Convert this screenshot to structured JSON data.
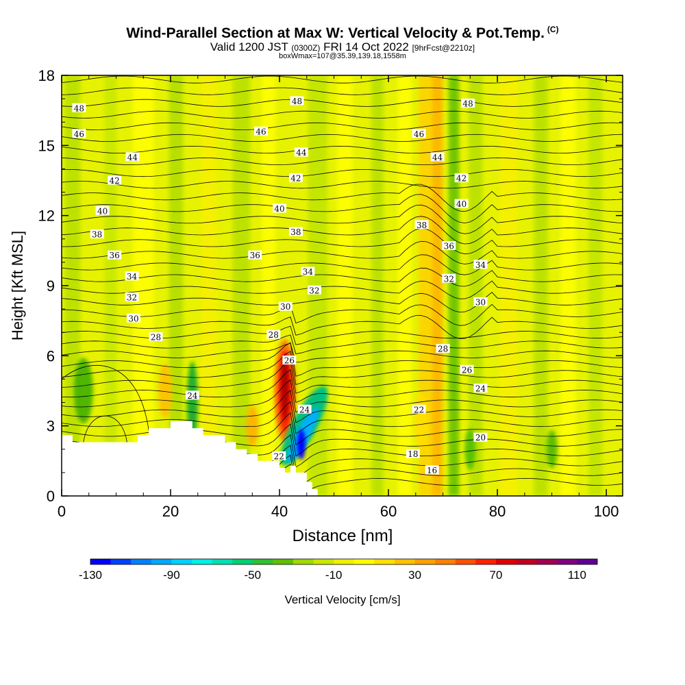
{
  "header": {
    "title": "Wind-Parallel Section at Max W: Vertical Velocity & Pot.Temp.",
    "copyright": "(C)",
    "valid_prefix": "Valid 1200 JST",
    "valid_utc": "(0300Z)",
    "valid_date": "FRI 14 Oct 2022",
    "forecast": "[9hrFcst@2210z]",
    "boxinfo": "boxWmax=107@35.39,139.18,1558m"
  },
  "colors": {
    "background_field": "#e6f200",
    "terrain": "#ffffff"
  },
  "colorbar": {
    "label": "Vertical Velocity [cm/s]",
    "tick_labels": [
      "-130",
      "-90",
      "-50",
      "-10",
      "30",
      "70",
      "110"
    ],
    "colors": [
      "#0000ff",
      "#0040ff",
      "#0080ff",
      "#00a8ff",
      "#00d0ff",
      "#00f0e8",
      "#00e0b0",
      "#00d070",
      "#30c030",
      "#60c000",
      "#a0d800",
      "#c8e800",
      "#f0f000",
      "#ffff00",
      "#ffe000",
      "#ffc000",
      "#ffa000",
      "#ff8000",
      "#ff5000",
      "#ff2000",
      "#e00000",
      "#c00020",
      "#a00050",
      "#800080",
      "#600090"
    ]
  },
  "chart_data": {
    "type": "heatmap",
    "xlabel": "Distance [nm]",
    "ylabel": "Height [Kft MSL]",
    "xlim": [
      0,
      103
    ],
    "ylim": [
      0,
      18
    ],
    "x_ticks": [
      "0",
      "20",
      "40",
      "60",
      "80",
      "100"
    ],
    "y_ticks": [
      "0",
      "3",
      "6",
      "9",
      "12",
      "15",
      "18"
    ],
    "field": "Vertical Velocity [cm/s]",
    "contour_field": "Potential Temperature",
    "terrain_profile": [
      [
        0,
        2.6
      ],
      [
        2,
        2.6
      ],
      [
        2,
        2.3
      ],
      [
        14,
        2.3
      ],
      [
        14,
        2.6
      ],
      [
        16,
        2.6
      ],
      [
        16,
        2.9
      ],
      [
        20,
        2.9
      ],
      [
        20,
        3.2
      ],
      [
        24,
        3.2
      ],
      [
        24,
        2.9
      ],
      [
        26,
        2.9
      ],
      [
        26,
        2.6
      ],
      [
        30,
        2.6
      ],
      [
        30,
        2.3
      ],
      [
        32,
        2.3
      ],
      [
        32,
        2.0
      ],
      [
        34,
        2.0
      ],
      [
        34,
        1.8
      ],
      [
        36,
        1.8
      ],
      [
        36,
        1.5
      ],
      [
        40,
        1.5
      ],
      [
        40,
        1.2
      ],
      [
        41,
        1.2
      ],
      [
        41,
        1.0
      ],
      [
        42,
        1.0
      ],
      [
        42,
        1.3
      ],
      [
        43,
        1.3
      ],
      [
        43,
        1.0
      ],
      [
        45,
        1.0
      ],
      [
        45,
        0.6
      ],
      [
        46,
        0.6
      ],
      [
        46,
        0.3
      ],
      [
        47,
        0.3
      ],
      [
        47,
        0.0
      ]
    ],
    "wind_maxima": [
      {
        "name": "updraft",
        "x": 41,
        "y": 4.5,
        "value": 107
      },
      {
        "name": "downdraft",
        "x": 44,
        "y": 2.2,
        "value": -130
      }
    ],
    "contour_labels": [
      {
        "text": "48",
        "x": 3.2,
        "y": 16.6
      },
      {
        "text": "48",
        "x": 43.2,
        "y": 16.9
      },
      {
        "text": "48",
        "x": 74.6,
        "y": 16.8
      },
      {
        "text": "46",
        "x": 3.2,
        "y": 15.5
      },
      {
        "text": "46",
        "x": 36.6,
        "y": 15.6
      },
      {
        "text": "46",
        "x": 65.6,
        "y": 15.5
      },
      {
        "text": "44",
        "x": 13.0,
        "y": 14.5
      },
      {
        "text": "44",
        "x": 44.0,
        "y": 14.7
      },
      {
        "text": "44",
        "x": 69.0,
        "y": 14.5
      },
      {
        "text": "42",
        "x": 9.7,
        "y": 13.5
      },
      {
        "text": "42",
        "x": 43.0,
        "y": 13.6
      },
      {
        "text": "42",
        "x": 73.4,
        "y": 13.6
      },
      {
        "text": "40",
        "x": 7.5,
        "y": 12.2
      },
      {
        "text": "40",
        "x": 40.0,
        "y": 12.3
      },
      {
        "text": "40",
        "x": 73.4,
        "y": 12.5
      },
      {
        "text": "38",
        "x": 6.5,
        "y": 11.2
      },
      {
        "text": "38",
        "x": 43.0,
        "y": 11.3
      },
      {
        "text": "38",
        "x": 66.1,
        "y": 11.6
      },
      {
        "text": "36",
        "x": 9.7,
        "y": 10.3
      },
      {
        "text": "36",
        "x": 35.5,
        "y": 10.3
      },
      {
        "text": "36",
        "x": 71.1,
        "y": 10.7
      },
      {
        "text": "34",
        "x": 12.9,
        "y": 9.4
      },
      {
        "text": "34",
        "x": 45.2,
        "y": 9.6
      },
      {
        "text": "34",
        "x": 76.9,
        "y": 9.9
      },
      {
        "text": "32",
        "x": 12.9,
        "y": 8.5
      },
      {
        "text": "32",
        "x": 46.4,
        "y": 8.8
      },
      {
        "text": "32",
        "x": 71.1,
        "y": 9.3
      },
      {
        "text": "30",
        "x": 13.2,
        "y": 7.6
      },
      {
        "text": "30",
        "x": 41.1,
        "y": 8.1
      },
      {
        "text": "30",
        "x": 76.9,
        "y": 8.3
      },
      {
        "text": "28",
        "x": 17.3,
        "y": 6.8
      },
      {
        "text": "28",
        "x": 38.9,
        "y": 6.9
      },
      {
        "text": "28",
        "x": 70.0,
        "y": 6.3
      },
      {
        "text": "26",
        "x": 41.8,
        "y": 5.8
      },
      {
        "text": "26",
        "x": 74.4,
        "y": 5.4
      },
      {
        "text": "24",
        "x": 24.0,
        "y": 4.3
      },
      {
        "text": "24",
        "x": 44.6,
        "y": 3.7
      },
      {
        "text": "24",
        "x": 76.9,
        "y": 4.6
      },
      {
        "text": "22",
        "x": 39.9,
        "y": 1.7
      },
      {
        "text": "22",
        "x": 65.6,
        "y": 3.7
      },
      {
        "text": "20",
        "x": 76.9,
        "y": 2.5
      },
      {
        "text": "18",
        "x": 64.5,
        "y": 1.8
      },
      {
        "text": "16",
        "x": 68.0,
        "y": 1.1
      }
    ]
  }
}
